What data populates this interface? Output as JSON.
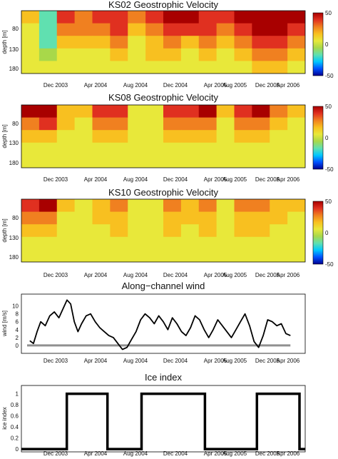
{
  "x_tick_labels": [
    "Dec 2003",
    "Apr 2004",
    "Aug 2004",
    "Dec 2004",
    "Apr 2005",
    "Aug 2005",
    "Dec 2005",
    "Apr 2006"
  ],
  "colors": {
    "colormap": [
      "#00008f",
      "#0050ff",
      "#00c8ff",
      "#60e0b0",
      "#a8d84a",
      "#e8e83a",
      "#f8c020",
      "#f08020",
      "#e03020",
      "#a80000"
    ],
    "wind_line": "#000000",
    "zero_line": "#909090",
    "ice_line": "#000000",
    "contour_line": "#2c4a1c"
  },
  "chart_data": [
    {
      "type": "heatmap",
      "title": "KS02 Geostrophic Velocity",
      "ylabel": "depth [m]",
      "y_ticks": [
        80,
        130,
        180
      ],
      "ylim": [
        200,
        35
      ],
      "x_tick_labels": [
        "Dec 2003",
        "Apr 2004",
        "Aug 2004",
        "Dec 2004",
        "Apr 2005",
        "Aug 2005",
        "Dec 2005",
        "Apr 2006"
      ],
      "colorbar_range": [
        -50,
        50
      ],
      "colorbar_ticks": [
        50,
        0,
        -50
      ],
      "columns": [
        "Nov 2003",
        "Jan 2004",
        "Mar 2004",
        "May 2004",
        "Jul 2004",
        "Sep 2004",
        "Nov 2004",
        "Jan 2005",
        "Mar 2005",
        "May 2005",
        "Jul 2005",
        "Sep 2005",
        "Nov 2005",
        "Jan 2006",
        "Mar 2006",
        "May 2006"
      ],
      "depths": [
        45,
        80,
        115,
        150,
        185
      ],
      "values": [
        [
          10,
          -15,
          30,
          25,
          30,
          35,
          20,
          30,
          40,
          40,
          38,
          30,
          40,
          45,
          45,
          40
        ],
        [
          5,
          -20,
          25,
          20,
          25,
          30,
          15,
          25,
          35,
          30,
          30,
          25,
          35,
          40,
          45,
          35
        ],
        [
          0,
          -15,
          15,
          10,
          15,
          20,
          5,
          15,
          20,
          15,
          20,
          15,
          25,
          30,
          35,
          25
        ],
        [
          0,
          -5,
          5,
          5,
          5,
          10,
          0,
          10,
          10,
          5,
          10,
          5,
          15,
          20,
          20,
          15
        ],
        [
          0,
          0,
          0,
          0,
          0,
          5,
          0,
          0,
          5,
          0,
          5,
          0,
          5,
          10,
          10,
          5
        ]
      ]
    },
    {
      "type": "heatmap",
      "title": "KS08 Geostrophic Velocity",
      "ylabel": "depth [m]",
      "y_ticks": [
        80,
        130,
        180
      ],
      "ylim": [
        200,
        35
      ],
      "x_tick_labels": [
        "Dec 2003",
        "Apr 2004",
        "Aug 2004",
        "Dec 2004",
        "Apr 2005",
        "Aug 2005",
        "Dec 2005",
        "Apr 2006"
      ],
      "colorbar_range": [
        -50,
        50
      ],
      "colorbar_ticks": [
        50,
        0,
        -50
      ],
      "columns": [
        "Nov 2003",
        "Jan 2004",
        "Mar 2004",
        "May 2004",
        "Jul 2004",
        "Sep 2004",
        "Nov 2004",
        "Jan 2005",
        "Mar 2005",
        "May 2005",
        "Jul 2005",
        "Sep 2005",
        "Nov 2005",
        "Jan 2006",
        "Mar 2006",
        "May 2006"
      ],
      "depths": [
        45,
        80,
        115,
        150,
        185
      ],
      "values": [
        [
          40,
          45,
          15,
          10,
          30,
          35,
          5,
          5,
          30,
          35,
          40,
          10,
          35,
          40,
          25,
          10
        ],
        [
          25,
          30,
          10,
          5,
          20,
          25,
          0,
          5,
          20,
          25,
          25,
          5,
          20,
          25,
          15,
          5
        ],
        [
          10,
          15,
          5,
          0,
          10,
          10,
          0,
          0,
          10,
          10,
          10,
          0,
          10,
          10,
          5,
          0
        ],
        [
          5,
          5,
          0,
          0,
          5,
          5,
          0,
          0,
          5,
          5,
          5,
          0,
          5,
          5,
          0,
          0
        ],
        [
          0,
          0,
          0,
          0,
          0,
          0,
          0,
          0,
          0,
          0,
          0,
          0,
          0,
          0,
          0,
          0
        ]
      ]
    },
    {
      "type": "heatmap",
      "title": "KS10 Geostrophic Velocity",
      "ylabel": "depth [m]",
      "y_ticks": [
        80,
        130,
        180
      ],
      "ylim": [
        200,
        35
      ],
      "x_tick_labels": [
        "Dec 2003",
        "Apr 2004",
        "Aug 2004",
        "Dec 2004",
        "Apr 2005",
        "Aug 2005",
        "Dec 2005",
        "Apr 2006"
      ],
      "colorbar_range": [
        -50,
        50
      ],
      "colorbar_ticks": [
        50,
        0,
        -50
      ],
      "columns": [
        "Nov 2003",
        "Jan 2004",
        "Mar 2004",
        "May 2004",
        "Jul 2004",
        "Sep 2004",
        "Nov 2004",
        "Jan 2005",
        "Mar 2005",
        "May 2005",
        "Jul 2005",
        "Sep 2005",
        "Nov 2005",
        "Jan 2006",
        "Mar 2006",
        "May 2006"
      ],
      "depths": [
        45,
        80,
        115,
        150,
        185
      ],
      "values": [
        [
          30,
          40,
          10,
          5,
          15,
          20,
          5,
          5,
          20,
          15,
          20,
          5,
          20,
          25,
          15,
          10
        ],
        [
          20,
          25,
          5,
          5,
          10,
          15,
          5,
          0,
          15,
          10,
          15,
          5,
          15,
          15,
          10,
          5
        ],
        [
          10,
          10,
          5,
          0,
          5,
          10,
          0,
          0,
          10,
          5,
          10,
          0,
          10,
          10,
          5,
          5
        ],
        [
          5,
          5,
          0,
          0,
          5,
          5,
          0,
          0,
          5,
          5,
          5,
          0,
          5,
          5,
          0,
          0
        ],
        [
          0,
          5,
          0,
          0,
          0,
          5,
          0,
          0,
          0,
          0,
          5,
          0,
          0,
          5,
          0,
          0
        ]
      ]
    },
    {
      "type": "line",
      "title": "Along−channel wind",
      "ylabel": "wind [m/s]",
      "y_ticks": [
        0,
        2,
        4,
        6,
        8,
        10
      ],
      "ylim": [
        -2,
        13
      ],
      "xlim": [
        0,
        30
      ],
      "x_tick_labels": [
        "Dec 2003",
        "Apr 2004",
        "Aug 2004",
        "Dec 2004",
        "Apr 2005",
        "Aug 2005",
        "Dec 2005",
        "Apr 2006"
      ],
      "x": [
        0.3,
        0.7,
        1.1,
        1.5,
        2.0,
        2.5,
        3.0,
        3.5,
        4.0,
        4.4,
        4.8,
        5.2,
        5.6,
        6.0,
        6.5,
        7.0,
        7.5,
        8.0,
        8.5,
        9.0,
        9.5,
        10.0,
        10.5,
        11.0,
        11.5,
        12.0,
        12.5,
        13.0,
        13.5,
        14.0,
        14.5,
        15.0,
        15.5,
        16.0,
        16.5,
        17.0,
        17.5,
        18.0,
        18.5,
        19.0,
        19.5,
        20.0,
        20.5,
        21.0,
        21.5,
        22.0,
        22.5,
        23.0,
        23.5,
        24.0,
        24.5,
        25.0,
        25.5,
        26.0,
        26.5,
        27.0,
        27.5,
        28.0,
        28.5,
        29.0
      ],
      "y": [
        1.2,
        0.5,
        3.5,
        6.0,
        5.0,
        7.5,
        8.5,
        7.0,
        9.5,
        11.5,
        10.5,
        6.0,
        3.5,
        5.5,
        7.5,
        8.0,
        6.0,
        4.5,
        3.5,
        2.5,
        2.0,
        0.5,
        -1.0,
        -0.5,
        1.5,
        3.5,
        6.5,
        8.0,
        7.0,
        5.5,
        7.5,
        6.0,
        4.0,
        7.0,
        5.5,
        3.5,
        2.5,
        4.5,
        7.5,
        6.5,
        4.0,
        2.0,
        4.0,
        6.5,
        5.0,
        3.5,
        2.0,
        4.0,
        6.0,
        8.0,
        5.0,
        1.0,
        -0.5,
        2.5,
        6.5,
        6.0,
        5.0,
        5.5,
        3.0,
        2.5
      ],
      "zero_line": 0
    },
    {
      "type": "line",
      "title": "Ice index",
      "ylabel": "ice index",
      "y_ticks": [
        0,
        0.2,
        0.4,
        0.6,
        0.8,
        1
      ],
      "ylim": [
        -0.05,
        1.15
      ],
      "xlim": [
        0,
        30
      ],
      "x_tick_labels": [
        "Dec 2003",
        "Apr 2004",
        "Aug 2004",
        "Dec 2004",
        "Apr 2005",
        "Aug 2005",
        "Dec 2005",
        "Apr 2006"
      ],
      "x": [
        0,
        4.8,
        4.8,
        9.1,
        9.1,
        12.7,
        12.7,
        19.4,
        19.4,
        24.9,
        24.9,
        29.4,
        29.4,
        30
      ],
      "y": [
        0,
        0,
        1,
        1,
        0,
        0,
        1,
        1,
        0,
        0,
        1,
        1,
        0,
        0
      ]
    }
  ]
}
